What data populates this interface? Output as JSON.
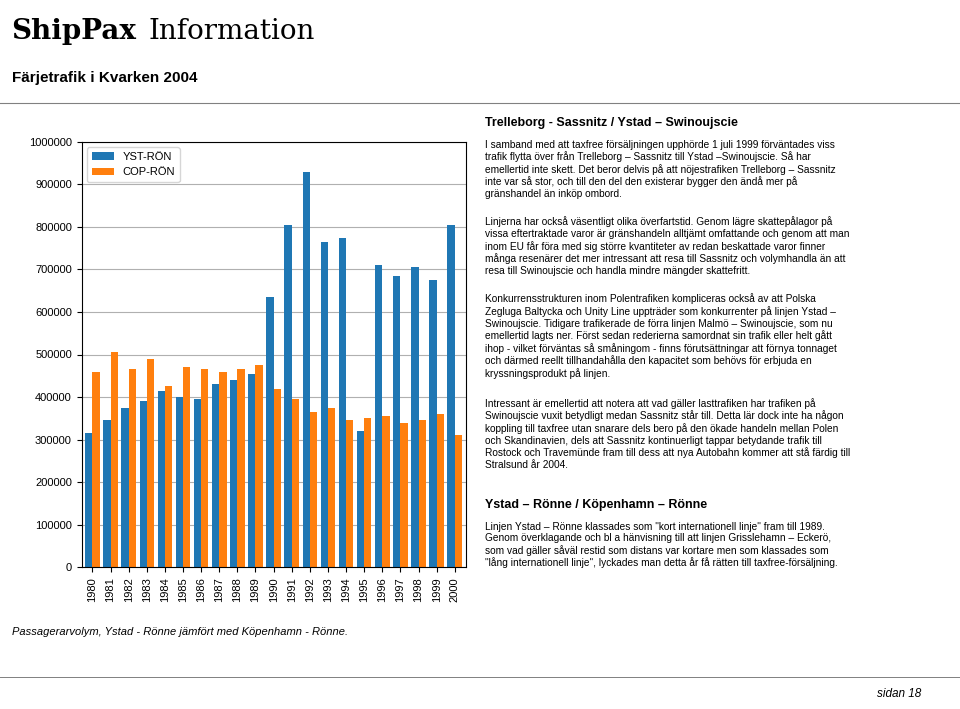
{
  "chart_data": {
    "type": "bar",
    "title": "Färjetrafik i Kvarken 2004",
    "categories": [
      "1980",
      "1981",
      "1982",
      "1983",
      "1984",
      "1985",
      "1986",
      "1987",
      "1988",
      "1989",
      "1990",
      "1991",
      "1992",
      "1993",
      "1994",
      "1995",
      "1996",
      "1997",
      "1998",
      "1999",
      "2000"
    ],
    "series": [
      {
        "name": "YST-RÖN",
        "values": [
          315000,
          345000,
          375000,
          390000,
          415000,
          400000,
          395000,
          430000,
          440000,
          455000,
          635000,
          805000,
          930000,
          765000,
          775000,
          320000,
          710000,
          685000,
          705000,
          675000,
          805000
        ]
      },
      {
        "name": "COP-RÖN",
        "values": [
          460000,
          505000,
          465000,
          490000,
          425000,
          470000,
          465000,
          460000,
          465000,
          475000,
          420000,
          395000,
          365000,
          375000,
          345000,
          350000,
          355000,
          340000,
          345000,
          360000,
          310000
        ]
      }
    ],
    "ylim": [
      0,
      1000000
    ],
    "yticks": [
      0,
      100000,
      200000,
      300000,
      400000,
      500000,
      600000,
      700000,
      800000,
      900000,
      1000000
    ],
    "grid": true,
    "legend": "upper left",
    "annotations": [
      "ShipPax",
      "Information",
      "Passagerarvolym, Ystad - Rönne jämfört med Köpenhamn - Rönne.",
      "Trelleborg - Sassnitz / Ystad – Swinoujscie",
      "I samband med att taxfree försäljningen upphörde 1 juli 1999 förväntades viss\ntrafik flytta över från Trelleborg – Sassnitz till Ystad –Swinoujscie. Så har\nemellertid inte skett. Det beror delvis på att nöjestrafiken Trelleborg – Sassnitz\ninte var så stor, och till den del den existerar bygger den ändå mer på\ngränshandel än inköp ombord.",
      "Linjerna har också väsentligt olika överfartstid. Genom lägre skattepålagor på\nvissa eftertraktade varor är gränshandeln alltjämt omfattande och genom att man\ninom EU får föra med sig större kvantiteter av redan beskattade varor finner\nmånga resenärer det mer intressant att resa till Sassnitz och volymhandla än att\nresa till Swinoujscie och handla mindre mängder skattefritt.",
      "Konkurrensstrukturen inom Polentrafiken kompliceras också av att Polska\nZegluga Baltycka och Unity Line uppträder som konkurrenter på linjen Ystad –\nSwinoujscie. Tidigare trafikerade de förra linjen Malmö – Swinoujscie, som nu\nemellertid lagts ner. Först sedan rederierna samordnat sin trafik eller helt gått\nihop - vilket förväntas så småningom - finns förutsättningar att förnya tonnaget\noch därmed reellt tillhandahålla den kapacitet som behövs för erbjuda en\nkryssningsprodukt på linjen.",
      "Intressant är emellertid att notera att vad gäller lasttrafiken har trafiken på\nSwinoujscie vuxit betydligt medan Sassnitz står till. Detta lär dock inte ha någon\nkoppling till taxfree utan snarare dels bero på den ökade handeln mellan Polen\noch Skandinavien, dels att Sassnitz kontinuerligt tappar betydande trafik till\nRostock och Travemünde fram till dess att nya Autobahn kommer att stå färdig till\nStralsund år 2004.",
      "Ystad – Rönne / Köpenhamn – Rönne",
      "Linjen Ystad – Rönne klassades som \"kort internationell linje\" fram till 1989.\nGenom överklagande och bl a hänvisning till att linjen Grisslehamn – Eckerö,\nsom vad gäller såväl restid som distans var kortare men som klassades som\n\"lång internationell linje\", lyckades man detta år få rätten till taxfree-försäljning.",
      "sidan 18"
    ]
  }
}
